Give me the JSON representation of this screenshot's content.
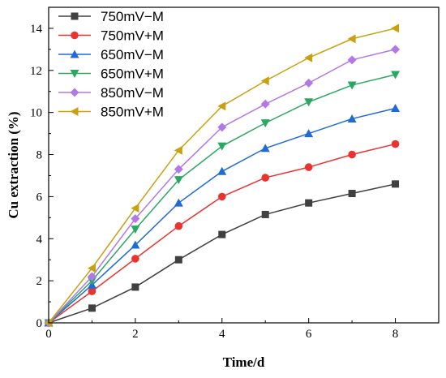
{
  "chart_data": {
    "type": "line",
    "xlabel": "Time/d",
    "ylabel": "Cu extraction (%)",
    "xlim": [
      0,
      9
    ],
    "ylim": [
      0,
      15
    ],
    "xticks": [
      0,
      2,
      4,
      6,
      8
    ],
    "yticks": [
      0,
      2,
      4,
      6,
      8,
      10,
      12,
      14
    ],
    "grid": false,
    "legend_position": "top-left",
    "x": [
      0,
      1,
      2,
      3,
      4,
      5,
      6,
      7,
      8
    ],
    "series": [
      {
        "name": "750mV−M",
        "color": "#404040",
        "marker": "square",
        "values": [
          0,
          0.7,
          1.7,
          3.0,
          4.2,
          5.15,
          5.7,
          6.15,
          6.6
        ]
      },
      {
        "name": "750mV+M",
        "color": "#e8332f",
        "marker": "circle",
        "values": [
          0,
          1.5,
          3.05,
          4.6,
          6.0,
          6.9,
          7.4,
          8.0,
          8.5
        ]
      },
      {
        "name": "650mV−M",
        "color": "#1f6bd6",
        "marker": "triangle-up",
        "values": [
          0,
          1.8,
          3.7,
          5.7,
          7.2,
          8.3,
          9.0,
          9.7,
          10.2
        ]
      },
      {
        "name": "650mV+M",
        "color": "#2aa862",
        "marker": "triangle-down",
        "values": [
          0,
          2.0,
          4.45,
          6.8,
          8.4,
          9.5,
          10.5,
          11.3,
          11.8
        ]
      },
      {
        "name": "850mV−M",
        "color": "#b278e8",
        "marker": "diamond",
        "values": [
          0,
          2.2,
          4.95,
          7.3,
          9.3,
          10.4,
          11.4,
          12.5,
          13.0
        ]
      },
      {
        "name": "850mV+M",
        "color": "#c9a00f",
        "marker": "triangle-left",
        "values": [
          0,
          2.6,
          5.45,
          8.2,
          10.3,
          11.5,
          12.6,
          13.5,
          14.0
        ]
      }
    ]
  }
}
